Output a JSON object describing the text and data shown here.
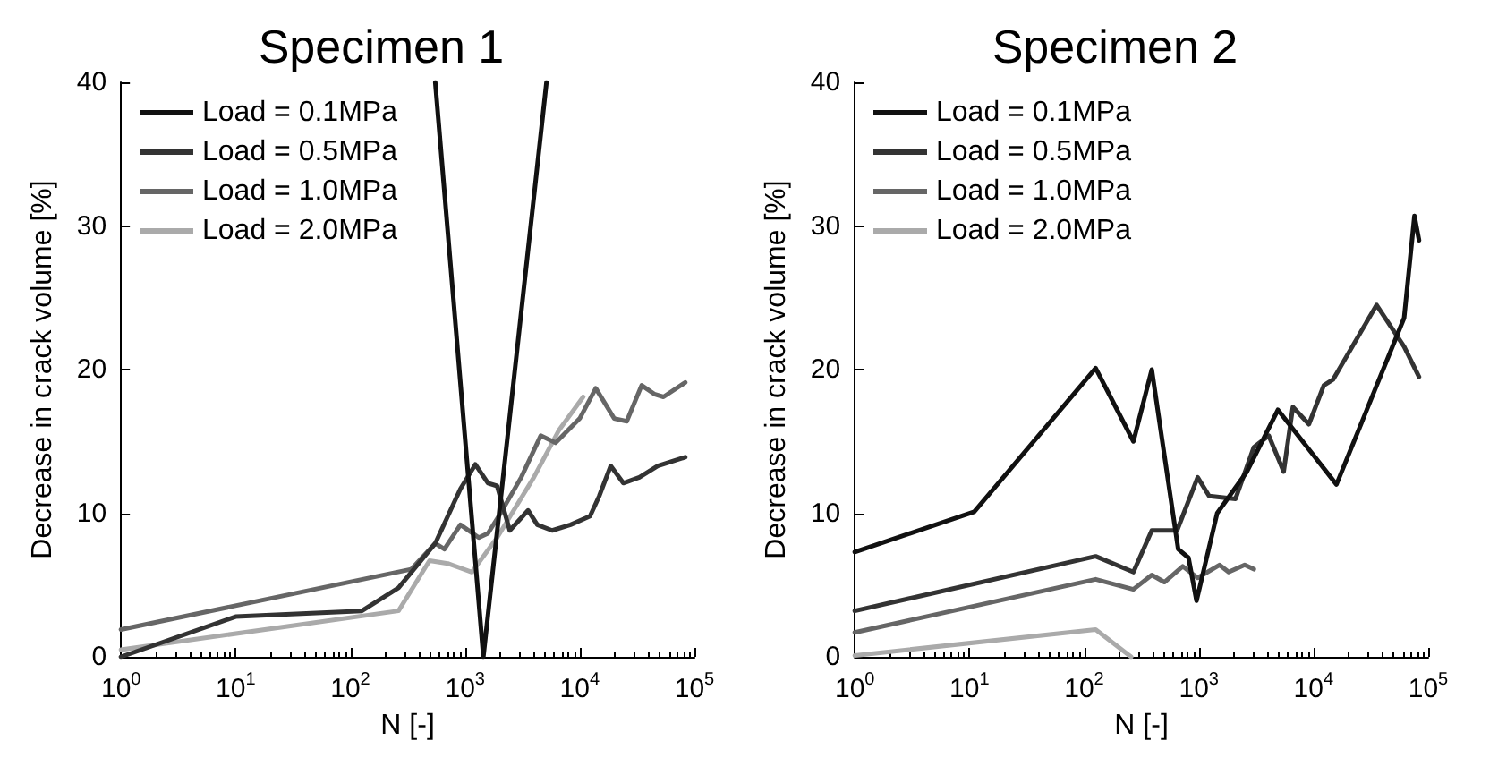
{
  "chart_data": [
    {
      "type": "line",
      "title": "Specimen 1",
      "xlabel": "N [-]",
      "ylabel": "Decrease in crack volume [%]",
      "log": "x",
      "xlim": [
        1,
        100000
      ],
      "ylim": [
        0,
        40
      ],
      "xticks": [
        {
          "value": 1,
          "label": "10$^{0}$"
        },
        {
          "value": 10,
          "label": "10$^{1}$"
        },
        {
          "value": 100,
          "label": "10$^{2}$"
        },
        {
          "value": 1000,
          "label": "10$^{3}$"
        },
        {
          "value": 10000,
          "label": "10$^{4}$"
        },
        {
          "value": 100000,
          "label": "10$^{5}$"
        }
      ],
      "yticks": [
        0,
        10,
        20,
        30,
        40
      ],
      "grid": false,
      "legend": "top left",
      "marker": "none",
      "line_style": "solid",
      "series": [
        {
          "name": "Load = 0.1MPa",
          "color": "#111111",
          "x": [
            550,
            1445,
            5130
          ],
          "values": [
            40,
            0,
            40
          ]
        },
        {
          "name": "Load = 0.5MPa",
          "color": "#333333",
          "x": [
            1,
            10,
            126,
            263,
            550,
            912,
            1230,
            1585,
            1905,
            2455,
            3548,
            4266,
            5754,
            8318,
            12300,
            14790,
            18620,
            23990,
            33110,
            47860,
            83180
          ],
          "values": [
            0,
            2.8,
            3.2,
            4.8,
            7.9,
            11.7,
            13.4,
            12.1,
            11.9,
            8.8,
            10.2,
            9.2,
            8.8,
            9.2,
            9.8,
            11.2,
            13.3,
            12.1,
            12.5,
            13.3,
            13.9
          ]
        },
        {
          "name": "Load = 1.0MPa",
          "color": "#666666",
          "x": [
            1,
            339,
            550,
            661,
            912,
            1318,
            1585,
            2042,
            3090,
            4571,
            6166,
            10000,
            13800,
            19950,
            25700,
            34670,
            44670,
            53700,
            83180
          ],
          "values": [
            1.9,
            6.1,
            7.9,
            7.5,
            9.2,
            8.3,
            8.6,
            10,
            12.5,
            15.4,
            14.9,
            16.6,
            18.7,
            16.6,
            16.4,
            18.9,
            18.3,
            18.1,
            19.1
          ]
        },
        {
          "name": "Load = 2.0MPa",
          "color": "#aaaaaa",
          "x": [
            1,
            263,
            490,
            708,
            1148,
            1905,
            3981,
            6607,
            10720
          ],
          "values": [
            0.5,
            3.2,
            6.7,
            6.5,
            5.9,
            8.3,
            12.5,
            15.8,
            18.1
          ]
        }
      ]
    },
    {
      "type": "line",
      "title": "Specimen 2",
      "xlabel": "N [-]",
      "ylabel": "Decrease in crack volume [%]",
      "log": "x",
      "xlim": [
        1,
        100000
      ],
      "ylim": [
        0,
        40
      ],
      "xticks": [
        {
          "value": 1,
          "label": "10$^{0}$"
        },
        {
          "value": 10,
          "label": "10$^{1}$"
        },
        {
          "value": 100,
          "label": "10$^{2}$"
        },
        {
          "value": 1000,
          "label": "10$^{3}$"
        },
        {
          "value": 10000,
          "label": "10$^{4}$"
        },
        {
          "value": 100000,
          "label": "10$^{5}$"
        }
      ],
      "yticks": [
        0,
        10,
        20,
        30,
        40
      ],
      "grid": false,
      "legend": "top left",
      "marker": "none",
      "line_style": "solid",
      "series": [
        {
          "name": "Load = 0.1MPa",
          "color": "#111111",
          "x": [
            1,
            11,
            126,
            269,
            389,
            661,
            813,
            955,
            1445,
            2630,
            4898,
            15850,
            61660,
            75860,
            83180
          ],
          "values": [
            7.3,
            10.1,
            20.1,
            15,
            20,
            7.5,
            6.9,
            3.9,
            10,
            12.9,
            17.2,
            12,
            23.6,
            30.7,
            29
          ]
        },
        {
          "name": "Load = 0.5MPa",
          "color": "#333333",
          "x": [
            1,
            126,
            269,
            389,
            646,
            977,
            1230,
            2089,
            3020,
            4074,
            5495,
            6607,
            9120,
            12300,
            14790,
            35480,
            61660,
            83180
          ],
          "values": [
            3.2,
            7,
            5.9,
            8.8,
            8.8,
            12.5,
            11.2,
            11,
            14.6,
            15.4,
            12.9,
            17.4,
            16.2,
            18.9,
            19.3,
            24.5,
            21.6,
            19.5
          ]
        },
        {
          "name": "Load = 1.0MPa",
          "color": "#666666",
          "x": [
            1,
            126,
            269,
            389,
            501,
            724,
            977,
            1514,
            1820,
            2512,
            3020
          ],
          "values": [
            1.7,
            5.4,
            4.7,
            5.7,
            5.2,
            6.3,
            5.5,
            6.4,
            5.9,
            6.4,
            6.1
          ]
        },
        {
          "name": "Load = 2.0MPa",
          "color": "#aaaaaa",
          "x": [
            1,
            126,
            257
          ],
          "values": [
            0.1,
            1.9,
            0
          ]
        }
      ]
    }
  ]
}
